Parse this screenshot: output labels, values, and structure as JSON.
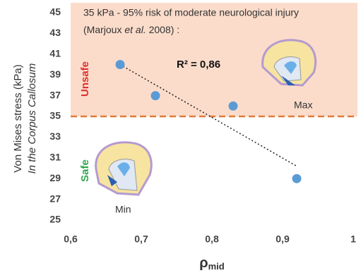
{
  "chart_data": {
    "type": "scatter",
    "x": [
      0.67,
      0.72,
      0.83,
      0.92
    ],
    "values": [
      40,
      37,
      36,
      29
    ],
    "color": "#5b9bd5",
    "xlim": [
      0.6,
      1
    ],
    "ylim": [
      25,
      45
    ],
    "xticks": [
      {
        "value": 0.6,
        "label": "0,6"
      },
      {
        "value": 0.7,
        "label": "0,7"
      },
      {
        "value": 0.8,
        "label": "0,8"
      },
      {
        "value": 0.9,
        "label": "0,9"
      },
      1
    ],
    "yticks": [
      25,
      27,
      29,
      31,
      33,
      35,
      37,
      39,
      41,
      43,
      45
    ],
    "ylabel": "Von Mises stress (kPa)",
    "ylabel2": "In the Corpus Callosum",
    "xlabel": "ρ",
    "xlabel_sub": "mid",
    "threshold": {
      "value": 35,
      "color": "#e07b39",
      "shade": "#fbdccb"
    },
    "trendline": {
      "x": [
        0.67,
        0.92
      ],
      "y": [
        40,
        30.2
      ]
    },
    "annotation": "35 kPa - 95% risk of moderate neurological injury",
    "citation": [
      "(Marjoux ",
      "et al.",
      " 2008) :"
    ],
    "r2_label": "R² = 0,86",
    "unsafe_label": "Unsafe",
    "safe_label": "Safe",
    "max_label": "Max",
    "min_label": "Min"
  }
}
